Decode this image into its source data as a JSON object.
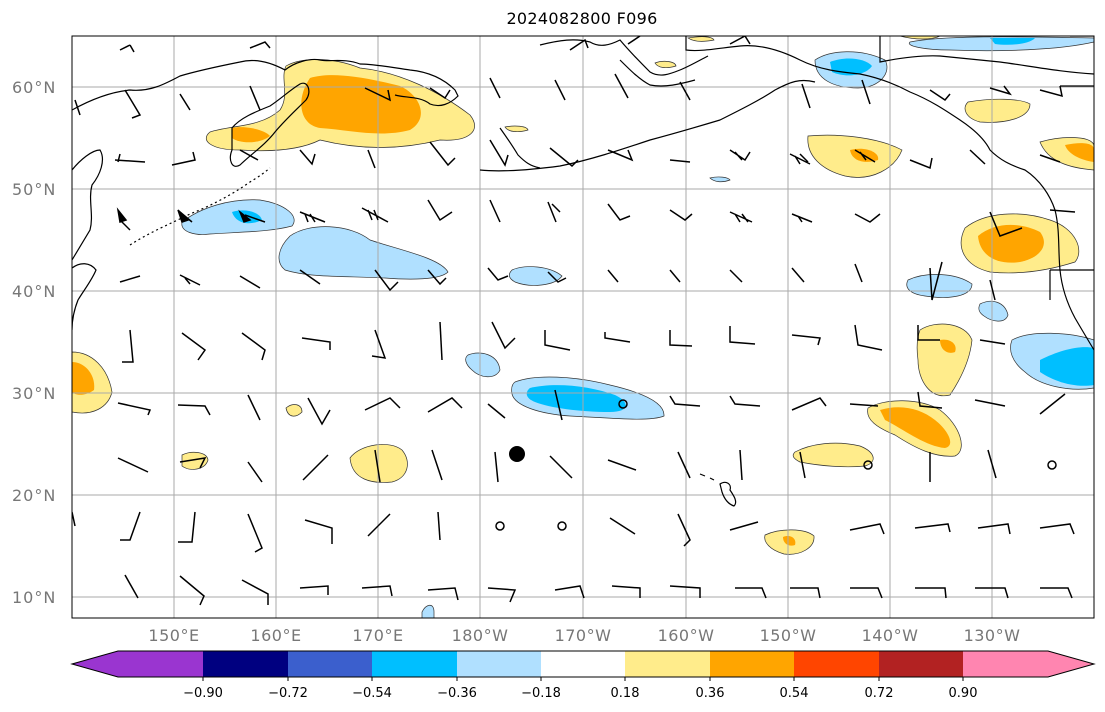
{
  "title": "2024082800 F096",
  "map": {
    "lat_labels": [
      "60°N",
      "50°N",
      "40°N",
      "30°N",
      "20°N",
      "10°N"
    ],
    "lon_labels": [
      "150°E",
      "160°E",
      "170°E",
      "180°W",
      "170°W",
      "160°W",
      "150°W",
      "140°W",
      "130°W"
    ],
    "gridline_color": "#aaaaaa",
    "coastline_color": "#000000",
    "storm_marker": "filled-circle",
    "minor_markers": "open-circle"
  },
  "colorbar": {
    "ticks": [
      "−0.90",
      "−0.72",
      "−0.54",
      "−0.36",
      "−0.18",
      "0.18",
      "0.36",
      "0.54",
      "0.72",
      "0.90"
    ],
    "colors": [
      "#9a35d0",
      "#000080",
      "#3b5fcd",
      "#00bfff",
      "#b0e0ff",
      "#ffffff",
      "#ffec8b",
      "#ffa500",
      "#ff4500",
      "#b22222",
      "#ff85b0"
    ]
  }
}
